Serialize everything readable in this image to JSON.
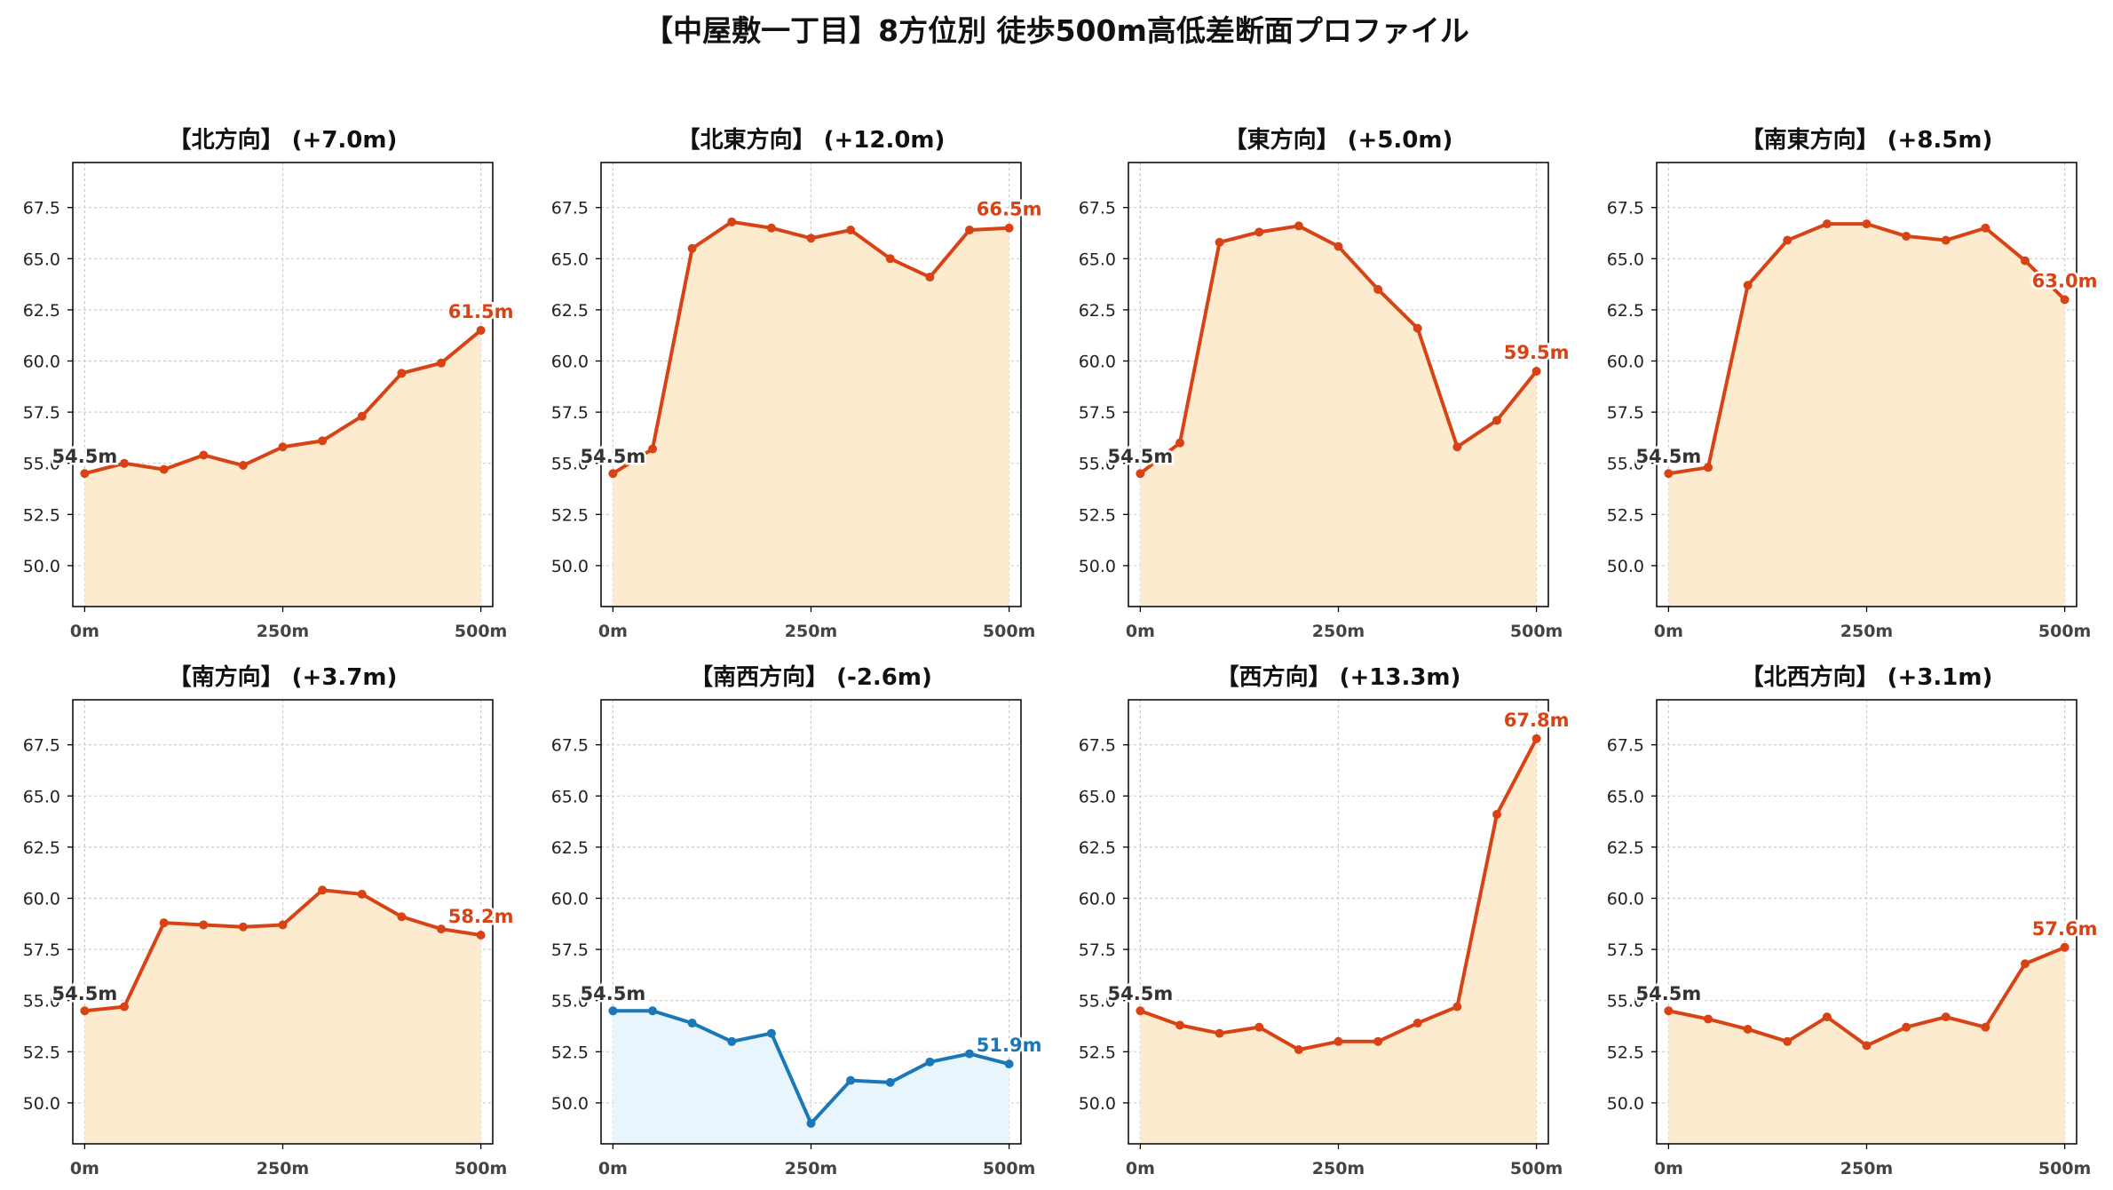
{
  "title": "【中屋敷一丁目】8方位別 徒歩500m高低差断面プロファイル",
  "colors": {
    "up_line": "#d84315",
    "up_fill": "#fdebd0",
    "down_line": "#1a78b8",
    "down_fill": "#e9f5fc",
    "start_label": "#333333",
    "grid": "#cccccc"
  },
  "chart_data": [
    {
      "type": "line",
      "title": "【北方向】 (+7.0m)",
      "x": [
        0,
        50,
        100,
        150,
        200,
        250,
        300,
        350,
        400,
        450,
        500
      ],
      "series": [
        {
          "values": [
            54.5,
            55.0,
            54.7,
            55.4,
            54.9,
            55.8,
            56.1,
            57.3,
            59.4,
            59.9,
            61.5
          ]
        }
      ],
      "start_label": "54.5m",
      "end_label": "61.5m",
      "trend": "up",
      "xticks": [
        "0m",
        "250m",
        "500m"
      ],
      "yticks": [
        "50.0",
        "52.5",
        "55.0",
        "57.5",
        "60.0",
        "62.5",
        "65.0",
        "67.5"
      ],
      "xlim": [
        -15,
        515
      ],
      "ylim": [
        48.0,
        69.7
      ],
      "grid": true
    },
    {
      "type": "line",
      "title": "【北東方向】 (+12.0m)",
      "x": [
        0,
        50,
        100,
        150,
        200,
        250,
        300,
        350,
        400,
        450,
        500
      ],
      "series": [
        {
          "values": [
            54.5,
            55.7,
            65.5,
            66.8,
            66.5,
            66.0,
            66.4,
            65.0,
            64.1,
            66.4,
            66.5
          ]
        }
      ],
      "start_label": "54.5m",
      "end_label": "66.5m",
      "trend": "up",
      "xticks": [
        "0m",
        "250m",
        "500m"
      ],
      "yticks": [
        "50.0",
        "52.5",
        "55.0",
        "57.5",
        "60.0",
        "62.5",
        "65.0",
        "67.5"
      ],
      "xlim": [
        -15,
        515
      ],
      "ylim": [
        48.0,
        69.7
      ],
      "grid": true
    },
    {
      "type": "line",
      "title": "【東方向】 (+5.0m)",
      "x": [
        0,
        50,
        100,
        150,
        200,
        250,
        300,
        350,
        400,
        450,
        500
      ],
      "series": [
        {
          "values": [
            54.5,
            56.0,
            65.8,
            66.3,
            66.6,
            65.6,
            63.5,
            61.6,
            55.8,
            57.1,
            59.5
          ]
        }
      ],
      "start_label": "54.5m",
      "end_label": "59.5m",
      "trend": "up",
      "xticks": [
        "0m",
        "250m",
        "500m"
      ],
      "yticks": [
        "50.0",
        "52.5",
        "55.0",
        "57.5",
        "60.0",
        "62.5",
        "65.0",
        "67.5"
      ],
      "xlim": [
        -15,
        515
      ],
      "ylim": [
        48.0,
        69.7
      ],
      "grid": true
    },
    {
      "type": "line",
      "title": "【南東方向】 (+8.5m)",
      "x": [
        0,
        50,
        100,
        150,
        200,
        250,
        300,
        350,
        400,
        450,
        500
      ],
      "series": [
        {
          "values": [
            54.5,
            54.8,
            63.7,
            65.9,
            66.7,
            66.7,
            66.1,
            65.9,
            66.5,
            64.9,
            63.0
          ]
        }
      ],
      "start_label": "54.5m",
      "end_label": "63.0m",
      "trend": "up",
      "xticks": [
        "0m",
        "250m",
        "500m"
      ],
      "yticks": [
        "50.0",
        "52.5",
        "55.0",
        "57.5",
        "60.0",
        "62.5",
        "65.0",
        "67.5"
      ],
      "xlim": [
        -15,
        515
      ],
      "ylim": [
        48.0,
        69.7
      ],
      "grid": true
    },
    {
      "type": "line",
      "title": "【南方向】 (+3.7m)",
      "x": [
        0,
        50,
        100,
        150,
        200,
        250,
        300,
        350,
        400,
        450,
        500
      ],
      "series": [
        {
          "values": [
            54.5,
            54.7,
            58.8,
            58.7,
            58.6,
            58.7,
            60.4,
            60.2,
            59.1,
            58.5,
            58.2
          ]
        }
      ],
      "start_label": "54.5m",
      "end_label": "58.2m",
      "trend": "up",
      "xticks": [
        "0m",
        "250m",
        "500m"
      ],
      "yticks": [
        "50.0",
        "52.5",
        "55.0",
        "57.5",
        "60.0",
        "62.5",
        "65.0",
        "67.5"
      ],
      "xlim": [
        -15,
        515
      ],
      "ylim": [
        48.0,
        69.7
      ],
      "grid": true
    },
    {
      "type": "line",
      "title": "【南西方向】 (-2.6m)",
      "x": [
        0,
        50,
        100,
        150,
        200,
        250,
        300,
        350,
        400,
        450,
        500
      ],
      "series": [
        {
          "values": [
            54.5,
            54.5,
            53.9,
            53.0,
            53.4,
            49.0,
            51.1,
            51.0,
            52.0,
            52.4,
            51.9
          ]
        }
      ],
      "start_label": "54.5m",
      "end_label": "51.9m",
      "trend": "down",
      "xticks": [
        "0m",
        "250m",
        "500m"
      ],
      "yticks": [
        "50.0",
        "52.5",
        "55.0",
        "57.5",
        "60.0",
        "62.5",
        "65.0",
        "67.5"
      ],
      "xlim": [
        -15,
        515
      ],
      "ylim": [
        48.0,
        69.7
      ],
      "grid": true
    },
    {
      "type": "line",
      "title": "【西方向】 (+13.3m)",
      "x": [
        0,
        50,
        100,
        150,
        200,
        250,
        300,
        350,
        400,
        450,
        500
      ],
      "series": [
        {
          "values": [
            54.5,
            53.8,
            53.4,
            53.7,
            52.6,
            53.0,
            53.0,
            53.9,
            54.7,
            64.1,
            67.8
          ]
        }
      ],
      "start_label": "54.5m",
      "end_label": "67.8m",
      "trend": "up",
      "xticks": [
        "0m",
        "250m",
        "500m"
      ],
      "yticks": [
        "50.0",
        "52.5",
        "55.0",
        "57.5",
        "60.0",
        "62.5",
        "65.0",
        "67.5"
      ],
      "xlim": [
        -15,
        515
      ],
      "ylim": [
        48.0,
        69.7
      ],
      "grid": true
    },
    {
      "type": "line",
      "title": "【北西方向】 (+3.1m)",
      "x": [
        0,
        50,
        100,
        150,
        200,
        250,
        300,
        350,
        400,
        450,
        500
      ],
      "series": [
        {
          "values": [
            54.5,
            54.1,
            53.6,
            53.0,
            54.2,
            52.8,
            53.7,
            54.2,
            53.7,
            56.8,
            57.6
          ]
        }
      ],
      "start_label": "54.5m",
      "end_label": "57.6m",
      "trend": "up",
      "xticks": [
        "0m",
        "250m",
        "500m"
      ],
      "yticks": [
        "50.0",
        "52.5",
        "55.0",
        "57.5",
        "60.0",
        "62.5",
        "65.0",
        "67.5"
      ],
      "xlim": [
        -15,
        515
      ],
      "ylim": [
        48.0,
        69.7
      ],
      "grid": true
    }
  ]
}
